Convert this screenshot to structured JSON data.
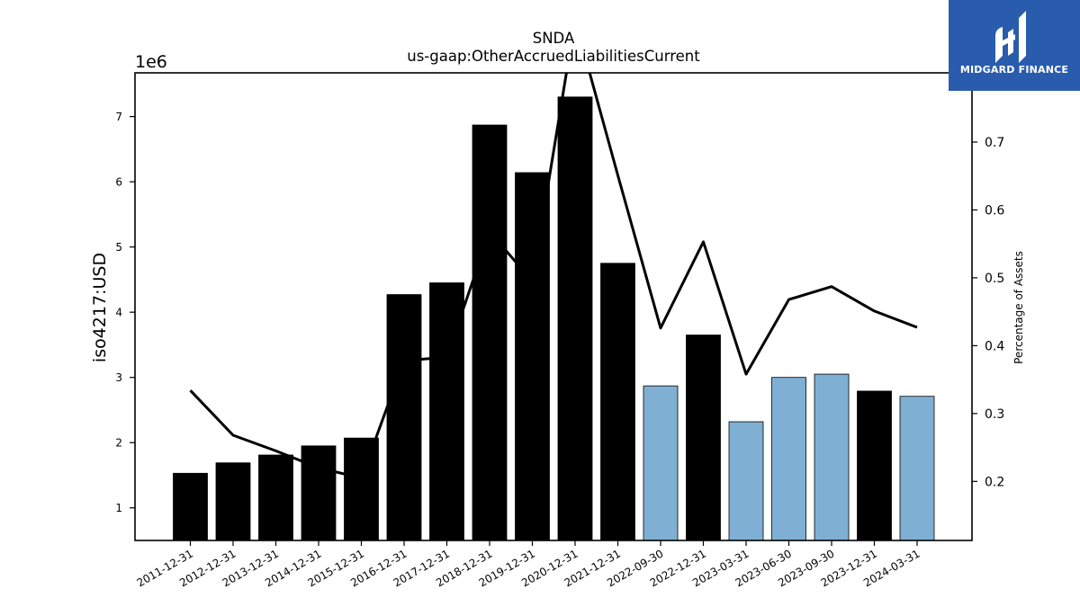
{
  "chart_data": {
    "type": "bar",
    "title": "SNDA",
    "subtitle": "us-gaap:OtherAccruedLiabilitiesCurrent",
    "ylabel": "iso4217:USD",
    "y2label": "Percentage of Assets",
    "offset_label": "1e6",
    "ylim": [
      0.5,
      7.67
    ],
    "y2lim": [
      0.113,
      0.802
    ],
    "yticks": [
      "1",
      "2",
      "3",
      "4",
      "5",
      "6",
      "7"
    ],
    "y2ticks": [
      "0.2",
      "0.3",
      "0.4",
      "0.5",
      "0.6",
      "0.7"
    ],
    "categories": [
      "2011-12-31",
      "2012-12-31",
      "2013-12-31",
      "2014-12-31",
      "2015-12-31",
      "2016-12-31",
      "2017-12-31",
      "2018-12-31",
      "2019-12-31",
      "2020-12-31",
      "2021-12-31",
      "2022-09-30",
      "2022-12-31",
      "2023-03-31",
      "2023-06-30",
      "2023-09-30",
      "2023-12-31",
      "2024-03-31"
    ],
    "values": [
      1.53,
      1.69,
      1.81,
      1.95,
      2.07,
      4.27,
      4.45,
      6.87,
      6.14,
      7.3,
      4.75,
      2.87,
      3.65,
      2.32,
      3.0,
      3.05,
      2.79,
      2.71
    ],
    "bar_colors": [
      "#000000",
      "#000000",
      "#000000",
      "#000000",
      "#000000",
      "#000000",
      "#000000",
      "#000000",
      "#000000",
      "#000000",
      "#000000",
      "#7fb0d3",
      "#000000",
      "#7fb0d3",
      "#7fb0d3",
      "#7fb0d3",
      "#000000",
      "#7fb0d3"
    ],
    "line_series": {
      "name": "Percentage of Assets",
      "color": "#000000",
      "values": [
        0.334,
        0.268,
        0.245,
        0.22,
        0.205,
        0.378,
        0.383,
        0.568,
        0.495,
        0.88,
        0.651,
        0.426,
        0.553,
        0.358,
        0.468,
        0.487,
        0.451,
        0.427
      ]
    },
    "grid": false
  },
  "logo": {
    "text": "MIDGARD FINANCE",
    "color": "#2a5cad"
  }
}
